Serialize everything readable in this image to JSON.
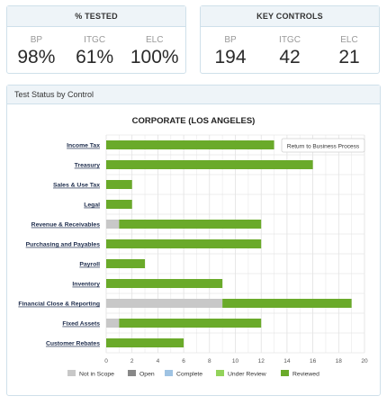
{
  "kpis": [
    {
      "title": "% TESTED",
      "items": [
        {
          "label": "BP",
          "value": "98%"
        },
        {
          "label": "ITGC",
          "value": "61%"
        },
        {
          "label": "ELC",
          "value": "100%"
        }
      ]
    },
    {
      "title": "KEY CONTROLS",
      "items": [
        {
          "label": "BP",
          "value": "194"
        },
        {
          "label": "ITGC",
          "value": "42"
        },
        {
          "label": "ELC",
          "value": "21"
        }
      ]
    }
  ],
  "panel": {
    "title": "Test Status by Control",
    "return_button": "Return to Business Process"
  },
  "chart_data": {
    "type": "bar",
    "orientation": "horizontal",
    "stacked": true,
    "title": "CORPORATE (LOS ANGELES)",
    "xlabel": "",
    "ylabel": "",
    "xlim": [
      0,
      20
    ],
    "xticks": [
      0,
      2,
      4,
      6,
      8,
      10,
      12,
      14,
      16,
      18,
      20
    ],
    "grid": true,
    "legend_position": "bottom",
    "categories": [
      "Income Tax",
      "Treasury",
      "Sales & Use Tax",
      "Legal",
      "Revenue & Receivables",
      "Purchasing and Payables",
      "Payroll",
      "Inventory",
      "Financial Close & Reporting",
      "Fixed Assets",
      "Customer Rebates"
    ],
    "series": [
      {
        "name": "Not in Scope",
        "color": "#c8c8c8",
        "values": [
          0,
          0,
          0,
          0,
          1,
          0,
          0,
          0,
          9,
          1,
          0
        ]
      },
      {
        "name": "Open",
        "color": "#888888",
        "values": [
          0,
          0,
          0,
          0,
          0,
          0,
          0,
          0,
          0,
          0,
          0
        ]
      },
      {
        "name": "Complete",
        "color": "#9fc3e3",
        "values": [
          0,
          0,
          0,
          0,
          0,
          0,
          0,
          0,
          0,
          0,
          0
        ]
      },
      {
        "name": "Under Review",
        "color": "#93d35b",
        "values": [
          0,
          0,
          0,
          0,
          0,
          0,
          0,
          0,
          0,
          0,
          0
        ]
      },
      {
        "name": "Reviewed",
        "color": "#6aaa2a",
        "values": [
          13,
          16,
          2,
          2,
          11,
          12,
          3,
          9,
          10,
          11,
          6
        ]
      }
    ]
  }
}
